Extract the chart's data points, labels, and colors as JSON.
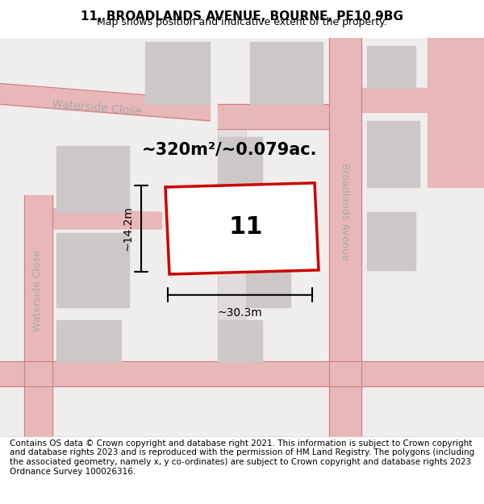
{
  "title": "11, BROADLANDS AVENUE, BOURNE, PE10 9BG",
  "subtitle": "Map shows position and indicative extent of the property.",
  "footer": "Contains OS data © Crown copyright and database right 2021. This information is subject to Crown copyright and database rights 2023 and is reproduced with the permission of HM Land Registry. The polygons (including the associated geometry, namely x, y co-ordinates) are subject to Crown copyright and database rights 2023 Ordnance Survey 100026316.",
  "bg_color": "#f5f5f5",
  "map_bg": "#f0eeee",
  "road_color": "#e8b8b8",
  "road_outline": "#d08080",
  "block_color": "#d8d4d4",
  "plot_color": "#cc0000",
  "plot_fill": "#ffffff",
  "plot_alpha": 0.3,
  "street_label_color": "#aaaaaa",
  "area_text": "~320m²/~0.079ac.",
  "number_text": "11",
  "dim_width": "~30.3m",
  "dim_height": "~14.2m",
  "footer_fontsize": 7.5,
  "title_fontsize": 11,
  "subtitle_fontsize": 9
}
